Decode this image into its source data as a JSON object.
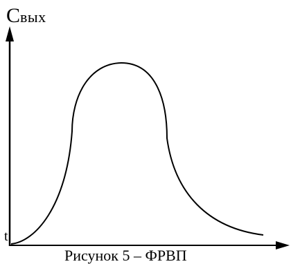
{
  "y_axis": {
    "label_main": "C",
    "label_sub": "вых"
  },
  "x_axis": {
    "origin_label": "t"
  },
  "caption": "Рисунок 5 – ФРВП"
}
